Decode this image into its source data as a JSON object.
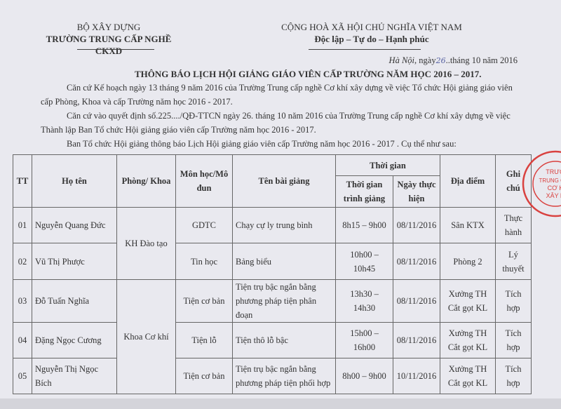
{
  "header_left": {
    "ministry": "BỘ XÂY DỰNG",
    "school": "TRƯỜNG TRUNG CẤP NGHỀ CKXD"
  },
  "header_right": {
    "nation": "CỘNG HOÀ XÃ HỘI CHỦ NGHĨA VIỆT NAM",
    "motto": "Độc lập – Tự do – Hạnh phúc"
  },
  "date_line": {
    "place": "Hà Nội",
    "text_before": ", ngày",
    "day": "26",
    "text_after": "..tháng 10 năm 2016"
  },
  "title": "THÔNG BÁO LỊCH HỘI GIẢNG GIÁO VIÊN CẤP TRƯỜNG NĂM HỌC 2016 – 2017.",
  "paragraphs": [
    "Căn cứ Kế hoạch ngày 13 tháng 9 năm 2016 của Trường Trung cấp nghề Cơ khí xây dựng về việc Tổ chức Hội giảng giáo viên cấp Phòng, Khoa và cấp Trường năm học 2016 - 2017.",
    "Căn cứ vào quyết định số.225..../QĐ-TTCN ngày 26. tháng 10 năm 2016 của Trường Trung cấp nghề Cơ khí xây dựng về việc Thành lập Ban Tổ chức Hội giảng giáo viên cấp Trường năm học 2016 - 2017.",
    "Ban Tổ chức Hội giảng thông báo Lịch Hội giảng giáo viên cấp Trường năm học 2016 - 2017 . Cụ thể như sau:"
  ],
  "table": {
    "headers": {
      "tt": "TT",
      "name": "Họ tên",
      "dept": "Phòng/ Khoa",
      "subject": "Môn học/Mô đun",
      "lesson": "Tên bài giảng",
      "time_group": "Thời gian",
      "time": "Thời gian trình giảng",
      "date": "Ngày thực hiện",
      "place": "Địa điểm",
      "note": "Ghi chú"
    },
    "departments": [
      "KH Đào tạo",
      "Khoa Cơ khí"
    ],
    "rows": [
      {
        "tt": "01",
        "name": "Nguyễn Quang Đức",
        "subject": "GDTC",
        "lesson": "Chạy cự ly trung bình",
        "time": "8h15 – 9h00",
        "date": "08/11/2016",
        "place": "Sân KTX",
        "note": "Thực hành"
      },
      {
        "tt": "02",
        "name": "Vũ Thị Phược",
        "subject": "Tin học",
        "lesson": "Bảng biểu",
        "time": "10h00 – 10h45",
        "date": "08/11/2016",
        "place": "Phòng 2",
        "note": "Lý thuyết"
      },
      {
        "tt": "03",
        "name": "Đỗ Tuấn Nghĩa",
        "subject": "Tiện cơ bản",
        "lesson": "Tiện trụ bậc ngắn bằng phương pháp tiện phân đoạn",
        "time": "13h30 – 14h30",
        "date": "08/11/2016",
        "place": "Xưởng TH Cắt gọt KL",
        "note": "Tích hợp"
      },
      {
        "tt": "04",
        "name": "Đặng Ngọc Cương",
        "subject": "Tiện lỗ",
        "lesson": "Tiện thô lỗ bậc",
        "time": "15h00 – 16h00",
        "date": "08/11/2016",
        "place": "Xưởng TH Cắt gọt KL",
        "note": "Tích hợp"
      },
      {
        "tt": "05",
        "name": "Nguyễn Thị Ngọc Bích",
        "subject": "Tiện cơ bản",
        "lesson": "Tiện trụ bậc ngắn bằng phương pháp tiện phối hợp",
        "time": "8h00 – 9h00",
        "date": "10/11/2016",
        "place": "Xưởng TH Cắt gọt KL",
        "note": "Tích hợp"
      }
    ]
  },
  "stamp": {
    "text": "TRƯỜNG TRUNG CẤP CƠ KHÍ XÂY DỰNG",
    "color": "#d9413f"
  }
}
